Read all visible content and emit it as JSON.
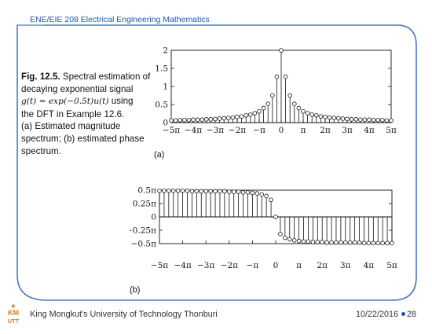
{
  "header": {
    "course_title": "ENE/EIE 208 Electrical Engineering Mathematics"
  },
  "caption": {
    "fig_label": "Fig. 12.5.",
    "line1": "Spectral estimation of",
    "line2": "decaying exponential signal",
    "math": "g(t) = exp(−0.5t)u(t)",
    "line3_suffix": "using",
    "line4": "the DFT in Example 12.6.",
    "line5": "(a) Estimated magnitude",
    "line6": "spectrum; (b) estimated phase",
    "line7": "spectrum."
  },
  "footer": {
    "university": "King Mongkut's University of Technology Thonburi",
    "date": "10/22/2016",
    "page": "28",
    "logo_top": "KM",
    "logo_bottom": "UTT"
  },
  "colors": {
    "accent": "#1f56a8",
    "frame": "#4a78c2",
    "plot_ink": "#111111"
  },
  "chart_data": [
    {
      "type": "stem",
      "panel_label": "(a)",
      "x_tick_labels": [
        "−5π",
        "−4π",
        "−3π",
        "−2π",
        "−π",
        "0",
        "π",
        "2π",
        "3π",
        "4π",
        "5π"
      ],
      "x_tick_values": [
        -5,
        -4,
        -3,
        -2,
        -1,
        0,
        1,
        2,
        3,
        4,
        5
      ],
      "x_unit": "π",
      "xlim": [
        -5,
        5
      ],
      "y_tick_labels": [
        "0",
        "0.5",
        "1",
        "1.5",
        "2"
      ],
      "y_tick_values": [
        0,
        0.5,
        1,
        1.5,
        2
      ],
      "ylim": [
        0,
        2
      ],
      "grid": false,
      "x": [
        -5,
        -4.8,
        -4.6,
        -4.4,
        -4.2,
        -4,
        -3.8,
        -3.6,
        -3.4,
        -3.2,
        -3,
        -2.8,
        -2.6,
        -2.4,
        -2.2,
        -2,
        -1.8,
        -1.6,
        -1.4,
        -1.2,
        -1,
        -0.8,
        -0.6,
        -0.4,
        -0.2,
        0,
        0.2,
        0.4,
        0.6,
        0.8,
        1,
        1.2,
        1.4,
        1.6,
        1.8,
        2,
        2.2,
        2.4,
        2.6,
        2.8,
        3,
        3.2,
        3.4,
        3.6,
        3.8,
        4,
        4.2,
        4.4,
        4.6,
        4.8,
        5
      ],
      "values": [
        0.06,
        0.06,
        0.07,
        0.07,
        0.07,
        0.08,
        0.08,
        0.08,
        0.09,
        0.09,
        0.1,
        0.11,
        0.12,
        0.13,
        0.14,
        0.16,
        0.17,
        0.2,
        0.22,
        0.26,
        0.31,
        0.4,
        0.52,
        0.75,
        1.27,
        2.0,
        1.27,
        0.75,
        0.52,
        0.4,
        0.31,
        0.26,
        0.22,
        0.2,
        0.17,
        0.16,
        0.14,
        0.13,
        0.12,
        0.11,
        0.1,
        0.09,
        0.09,
        0.08,
        0.08,
        0.08,
        0.07,
        0.07,
        0.07,
        0.06,
        0.06
      ]
    },
    {
      "type": "stem",
      "panel_label": "(b)",
      "x_tick_labels": [
        "−5π",
        "−4π",
        "−3π",
        "−2π",
        "−π",
        "0",
        "π",
        "2π",
        "3π",
        "4π",
        "5π"
      ],
      "x_tick_values": [
        -5,
        -4,
        -3,
        -2,
        -1,
        0,
        1,
        2,
        3,
        4,
        5
      ],
      "x_unit": "π",
      "xlim": [
        -5,
        5
      ],
      "y_tick_labels": [
        "0.5π",
        "0.25π",
        "0",
        "−0.25π",
        "−0.5π"
      ],
      "y_tick_values": [
        0.5,
        0.25,
        0,
        -0.25,
        -0.5
      ],
      "y_unit": "π",
      "ylim": [
        -0.5,
        0.5
      ],
      "grid": false,
      "x": [
        -5,
        -4.8,
        -4.6,
        -4.4,
        -4.2,
        -4,
        -3.8,
        -3.6,
        -3.4,
        -3.2,
        -3,
        -2.8,
        -2.6,
        -2.4,
        -2.2,
        -2,
        -1.8,
        -1.6,
        -1.4,
        -1.2,
        -1,
        -0.8,
        -0.6,
        -0.4,
        -0.2,
        0,
        0.2,
        0.4,
        0.6,
        0.8,
        1,
        1.2,
        1.4,
        1.6,
        1.8,
        2,
        2.2,
        2.4,
        2.6,
        2.8,
        3,
        3.2,
        3.4,
        3.6,
        3.8,
        4,
        4.2,
        4.4,
        4.6,
        4.8,
        5
      ],
      "values": [
        0.49,
        0.49,
        0.49,
        0.49,
        0.49,
        0.49,
        0.49,
        0.48,
        0.48,
        0.48,
        0.48,
        0.48,
        0.48,
        0.48,
        0.48,
        0.47,
        0.47,
        0.47,
        0.46,
        0.46,
        0.45,
        0.44,
        0.42,
        0.39,
        0.32,
        0.0,
        -0.32,
        -0.39,
        -0.42,
        -0.44,
        -0.45,
        -0.46,
        -0.46,
        -0.47,
        -0.47,
        -0.47,
        -0.48,
        -0.48,
        -0.48,
        -0.48,
        -0.48,
        -0.48,
        -0.48,
        -0.48,
        -0.49,
        -0.49,
        -0.49,
        -0.49,
        -0.49,
        -0.49,
        -0.49
      ]
    }
  ]
}
